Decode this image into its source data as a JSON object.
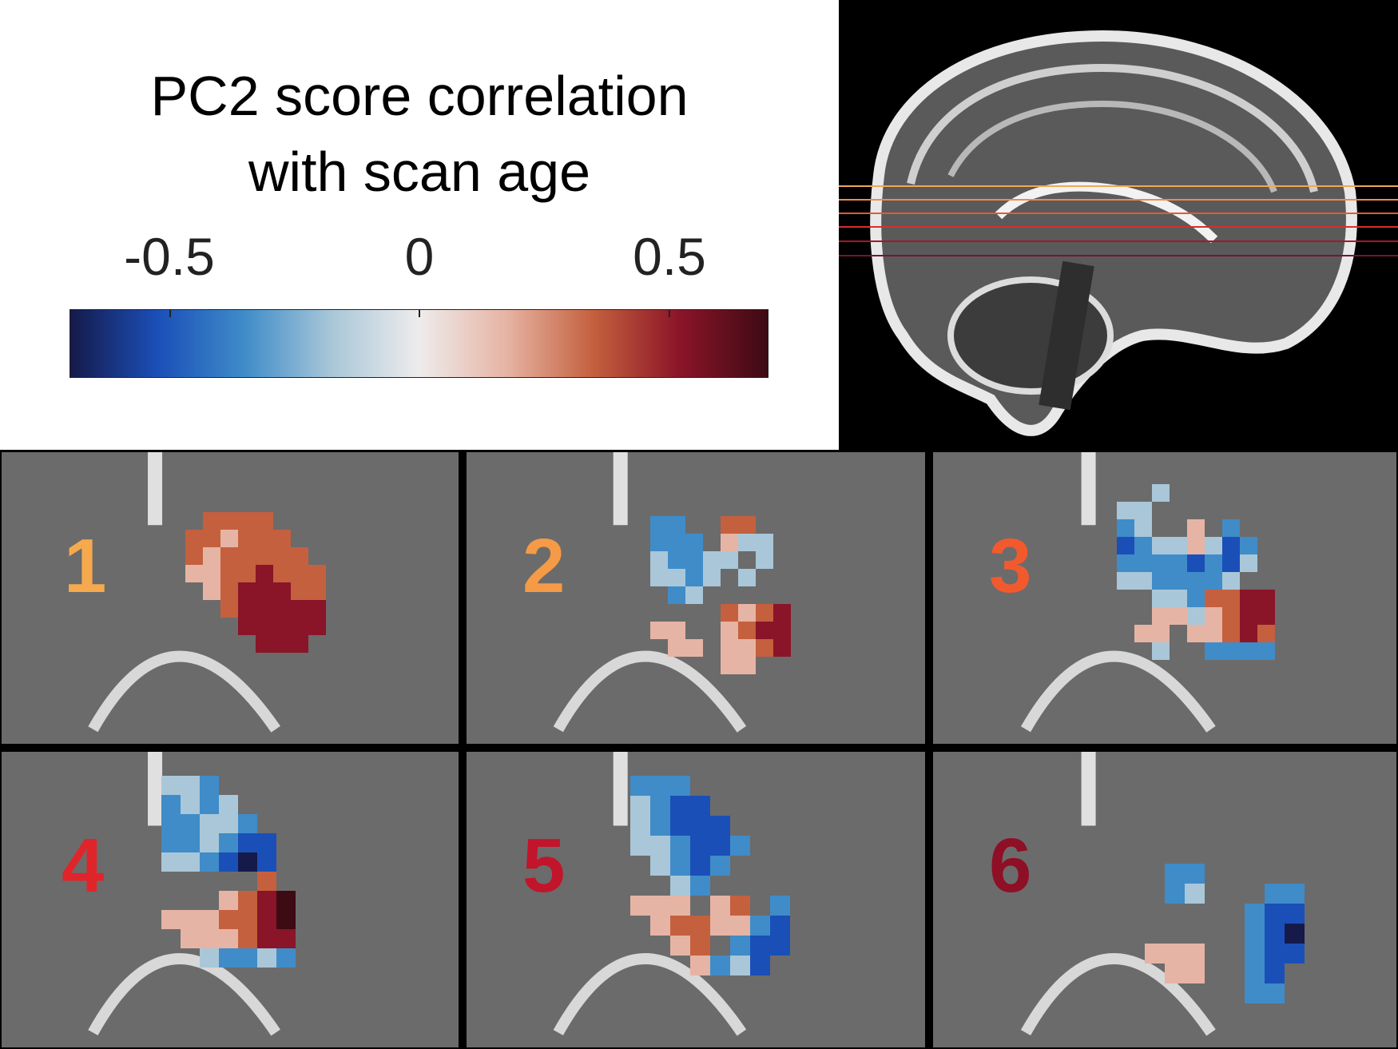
{
  "legend": {
    "title_line_1": "PC2 score correlation",
    "title_line_2": "with scan age",
    "ticks": [
      {
        "label": "-0.5",
        "value": -0.5
      },
      {
        "label": "0",
        "value": 0
      },
      {
        "label": "0.5",
        "value": 0.5
      }
    ],
    "range": [
      -0.7,
      0.7
    ],
    "colormap": [
      "#151a4a",
      "#1b4fb8",
      "#3f8cc9",
      "#a9c7d8",
      "#eeecec",
      "#e6b4a4",
      "#c4603e",
      "#8a1428",
      "#3d0b14"
    ]
  },
  "sagittal": {
    "slice_line_colors": [
      "#f2a65a",
      "#f0894d",
      "#e8573a",
      "#d3302f",
      "#a5182d",
      "#7a1230"
    ]
  },
  "slices": [
    {
      "number": "1",
      "number_color": "#f6a94d"
    },
    {
      "number": "2",
      "number_color": "#f59a46"
    },
    {
      "number": "3",
      "number_color": "#f25a2e"
    },
    {
      "number": "4",
      "number_color": "#e0252a"
    },
    {
      "number": "5",
      "number_color": "#c2142b"
    },
    {
      "number": "6",
      "number_color": "#8e0f26"
    }
  ]
}
